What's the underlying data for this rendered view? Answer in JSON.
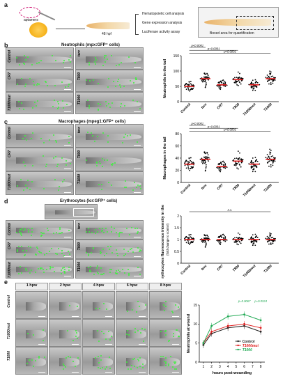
{
  "panels": {
    "a": {
      "label": "a",
      "aptamers": "aptamers",
      "stage": "48 hpf",
      "analyses": [
        "Hematopoietic cell analysis",
        "Gene expression analysis",
        "Luciferase activity assay"
      ],
      "boxed_caption": "Boxed area for quantification"
    },
    "b": {
      "label": "b",
      "title": "Neutrophils (mpx:GFP⁺ cells)",
      "left_rows": [
        "Control",
        "CR7",
        "T1000mut"
      ],
      "right_rows": [
        "terc",
        "T800",
        "T1000"
      ]
    },
    "c": {
      "label": "c",
      "title": "Macrophages (mpeg1:GFP⁺ cells)",
      "left_rows": [
        "Control",
        "CR7",
        "T1000mut"
      ],
      "right_rows": [
        "terc",
        "T800",
        "T1000"
      ]
    },
    "d": {
      "label": "d",
      "title": "Erythrocytes (lcr:GFP⁺ cells)",
      "left_rows": [
        "Control",
        "CR7",
        "T1000mut"
      ],
      "right_rows": [
        "terc",
        "T800",
        "T1000"
      ]
    },
    "e": {
      "label": "e",
      "columns": [
        "1 hpw",
        "2 hpw",
        "4 hpw",
        "6 hpw",
        "8 hpw"
      ],
      "rows": [
        "Control",
        "T1000mut",
        "T1000"
      ]
    }
  },
  "chart_data": [
    {
      "id": "b",
      "type": "scatter",
      "ylabel": "Neutrophils in the tail",
      "categories": [
        "Control",
        "terc",
        "CR7",
        "T800",
        "T1000mut",
        "T1000"
      ],
      "means": [
        50,
        75,
        55,
        72,
        55,
        75
      ],
      "sd": [
        15,
        18,
        14,
        18,
        15,
        18
      ],
      "ylim": [
        0,
        150
      ],
      "yticks": [
        0,
        50,
        100,
        150
      ],
      "annotations": [
        {
          "text": "p<0.0001",
          "from": 0,
          "to": 1
        },
        {
          "text": "p=0.0001",
          "from": 0,
          "to": 3
        },
        {
          "text": "p<0.0001",
          "from": 0,
          "to": 5
        }
      ]
    },
    {
      "id": "c",
      "type": "scatter",
      "ylabel": "Macrophages in the tail",
      "categories": [
        "Control",
        "terc",
        "CR7",
        "T800",
        "T1000mut",
        "T1000"
      ],
      "means": [
        30,
        38,
        26,
        35,
        30,
        38
      ],
      "sd": [
        10,
        12,
        8,
        12,
        10,
        12
      ],
      "ylim": [
        0,
        80
      ],
      "yticks": [
        0,
        20,
        40,
        60,
        80
      ],
      "annotations": [
        {
          "text": "p<0.0001",
          "from": 0,
          "to": 1
        },
        {
          "text": "p=0.0001",
          "from": 0,
          "to": 3
        },
        {
          "text": "p<0.0001",
          "from": 0,
          "to": 5
        }
      ]
    },
    {
      "id": "d",
      "type": "scatter",
      "ylabel": "Erythrocytes fluorescence intensity in the tail",
      "ylabel2": "(fold change to control)",
      "categories": [
        "Control",
        "terc",
        "CR7",
        "T800",
        "T1000mut",
        "T1000"
      ],
      "means": [
        1.0,
        1.0,
        1.0,
        1.0,
        1.0,
        1.0
      ],
      "sd": [
        0.2,
        0.2,
        0.2,
        0.2,
        0.2,
        0.2
      ],
      "ylim": [
        0,
        2.0
      ],
      "yticks": [
        0,
        0.5,
        1.0,
        1.5,
        2.0
      ],
      "annotations": [
        {
          "text": "n.s.",
          "from": 0,
          "to": 5
        }
      ]
    },
    {
      "id": "e",
      "type": "line",
      "ylabel": "Neutrophils at wound",
      "xlabel": "hours post-wounding",
      "x": [
        1,
        2,
        4,
        6,
        8
      ],
      "xticks": [
        1,
        2,
        3,
        4,
        5,
        6,
        7,
        8
      ],
      "ylim": [
        0,
        15
      ],
      "yticks": [
        0,
        5,
        10,
        15
      ],
      "series": [
        {
          "name": "Control",
          "color": "#222222",
          "values": [
            4.5,
            7.5,
            9,
            9.5,
            8
          ]
        },
        {
          "name": "T1000mut",
          "color": "#e02020",
          "values": [
            5,
            8,
            9.5,
            10,
            9
          ]
        },
        {
          "name": "T1000",
          "color": "#22aa55",
          "values": [
            5,
            9.5,
            12,
            12.5,
            11
          ]
        }
      ],
      "annotations": [
        {
          "text": "p=0.0067",
          "x": 6
        },
        {
          "text": "p=0.0324",
          "x": 8
        }
      ]
    }
  ]
}
